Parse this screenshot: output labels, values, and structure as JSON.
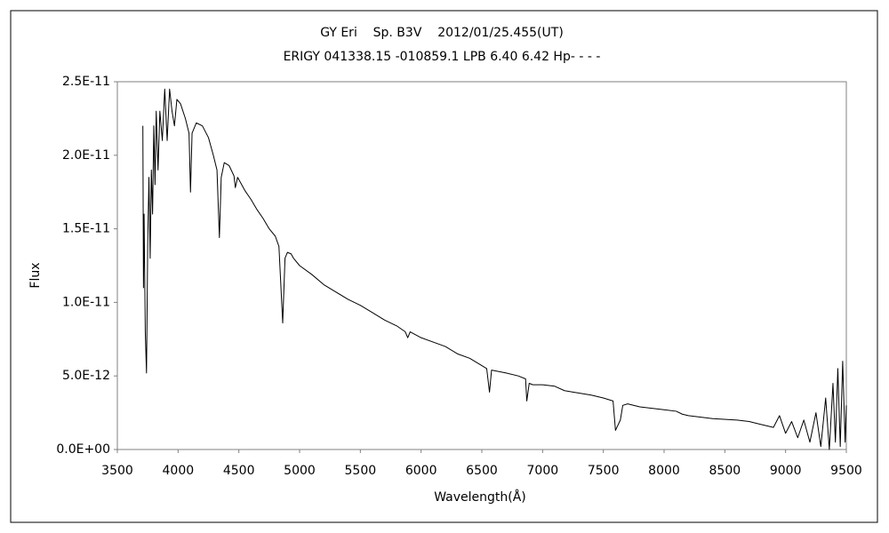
{
  "chart_data": {
    "type": "line",
    "title": "GY Eri    Sp. B3V    2012/01/25.455(UT)",
    "subtitle": "ERIGY 041338.15 -010859.1 LPB 6.40 6.42 Hp- - - -",
    "x_label": "Wavelength(Å)",
    "y_label": "Flux",
    "color": "#000000",
    "grid": false,
    "xlim": [
      3500,
      9500
    ],
    "xticks": [
      3500,
      4000,
      4500,
      5000,
      5500,
      6000,
      6500,
      7000,
      7500,
      8000,
      8500,
      9000,
      9500
    ],
    "ylim": [
      0,
      2.5e-11
    ],
    "yticks": [
      {
        "value": 0,
        "label": "0.0E+00"
      },
      {
        "value": 5e-12,
        "label": "5.0E-12"
      },
      {
        "value": 1e-11,
        "label": "1.0E-11"
      },
      {
        "value": 1.5e-11,
        "label": "1.5E-11"
      },
      {
        "value": 2e-11,
        "label": "2.0E-11"
      },
      {
        "value": 2.5e-11,
        "label": "2.5E-11"
      }
    ],
    "x": [
      3710,
      3715,
      3720,
      3730,
      3740,
      3750,
      3760,
      3770,
      3780,
      3790,
      3800,
      3810,
      3820,
      3835,
      3850,
      3870,
      3890,
      3910,
      3930,
      3950,
      3970,
      3990,
      4020,
      4060,
      4090,
      4102,
      4115,
      4150,
      4200,
      4250,
      4290,
      4320,
      4340,
      4355,
      4380,
      4420,
      4460,
      4471,
      4490,
      4550,
      4600,
      4650,
      4700,
      4750,
      4800,
      4830,
      4861,
      4880,
      4900,
      4930,
      4950,
      5000,
      5100,
      5200,
      5300,
      5400,
      5500,
      5600,
      5700,
      5800,
      5870,
      5890,
      5910,
      6000,
      6200,
      6300,
      6400,
      6500,
      6540,
      6563,
      6580,
      6700,
      6800,
      6860,
      6870,
      6890,
      6920,
      7000,
      7100,
      7180,
      7250,
      7400,
      7500,
      7580,
      7600,
      7640,
      7660,
      7700,
      7800,
      7900,
      8000,
      8100,
      8150,
      8200,
      8400,
      8600,
      8700,
      8800,
      8900,
      8950,
      9000,
      9050,
      9100,
      9150,
      9200,
      9250,
      9290,
      9330,
      9360,
      9390,
      9410,
      9430,
      9450,
      9470,
      9490,
      9500
    ],
    "values": [
      2.2e-11,
      1.1e-11,
      1.6e-11,
      8e-12,
      5.2e-12,
      1.4e-11,
      1.85e-11,
      1.3e-11,
      1.9e-11,
      1.6e-11,
      2.2e-11,
      1.8e-11,
      2.3e-11,
      1.9e-11,
      2.3e-11,
      2.1e-11,
      2.45e-11,
      2.1e-11,
      2.45e-11,
      2.3e-11,
      2.2e-11,
      2.38e-11,
      2.35e-11,
      2.25e-11,
      2.15e-11,
      1.75e-11,
      2.15e-11,
      2.22e-11,
      2.2e-11,
      2.12e-11,
      2e-11,
      1.9e-11,
      1.44e-11,
      1.85e-11,
      1.95e-11,
      1.93e-11,
      1.86e-11,
      1.78e-11,
      1.85e-11,
      1.76e-11,
      1.7e-11,
      1.63e-11,
      1.57e-11,
      1.5e-11,
      1.45e-11,
      1.38e-11,
      8.6e-12,
      1.3e-11,
      1.34e-11,
      1.33e-11,
      1.3e-11,
      1.25e-11,
      1.19e-11,
      1.12e-11,
      1.07e-11,
      1.02e-11,
      9.8e-12,
      9.3e-12,
      8.8e-12,
      8.4e-12,
      8e-12,
      7.6e-12,
      8e-12,
      7.6e-12,
      7e-12,
      6.5e-12,
      6.2e-12,
      5.7e-12,
      5.5e-12,
      3.9e-12,
      5.4e-12,
      5.2e-12,
      5e-12,
      4.8e-12,
      3.3e-12,
      4.5e-12,
      4.4e-12,
      4.4e-12,
      4.3e-12,
      4e-12,
      3.9e-12,
      3.7e-12,
      3.5e-12,
      3.3e-12,
      1.3e-12,
      2e-12,
      3e-12,
      3.1e-12,
      2.9e-12,
      2.8e-12,
      2.7e-12,
      2.6e-12,
      2.4e-12,
      2.3e-12,
      2.1e-12,
      2e-12,
      1.9e-12,
      1.7e-12,
      1.5e-12,
      2.3e-12,
      1.1e-12,
      1.9e-12,
      8e-13,
      2e-12,
      5e-13,
      2.5e-12,
      2e-13,
      3.5e-12,
      0,
      4.5e-12,
      5e-13,
      5.5e-12,
      2e-13,
      6e-12,
      5e-13,
      3e-12
    ]
  }
}
